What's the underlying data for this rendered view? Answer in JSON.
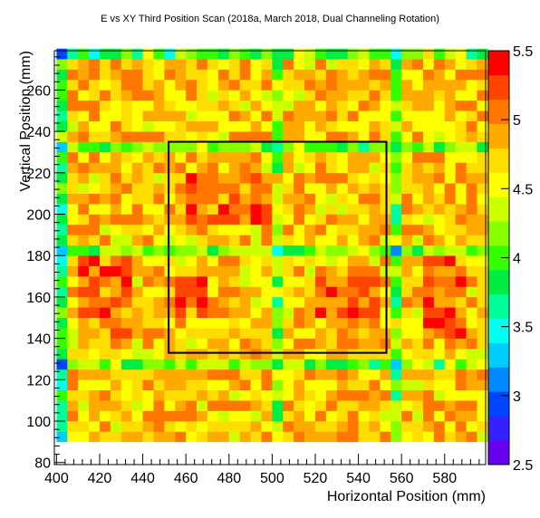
{
  "chart_data": {
    "type": "heatmap",
    "title": "E vs XY Third Position Scan (2018a, March 2018, Dual Channeling Rotation)",
    "xlabel": "Horizontal Position (mm)",
    "ylabel": "Vertical Position (mm)",
    "xlim": [
      399,
      599
    ],
    "ylim": [
      79,
      279
    ],
    "x_ticks": [
      400,
      420,
      440,
      460,
      480,
      500,
      520,
      540,
      560,
      580
    ],
    "y_ticks": [
      80,
      100,
      120,
      140,
      160,
      180,
      200,
      220,
      240,
      260
    ],
    "colorbar": {
      "range": [
        2.5,
        5.5
      ],
      "ticks": [
        2.5,
        3,
        3.5,
        4,
        4.5,
        5,
        5.5
      ],
      "palette": [
        "#6600ee",
        "#3322ff",
        "#0044ff",
        "#0088ff",
        "#00ccff",
        "#00ffee",
        "#00ff99",
        "#00ee44",
        "#33ff00",
        "#88ff00",
        "#ccff00",
        "#ffff00",
        "#ffdd00",
        "#ffaa00",
        "#ff7700",
        "#ff4400",
        "#ff0000"
      ]
    },
    "grid": false,
    "bin_size_mm": 5,
    "x_bins": [
      400,
      405,
      410,
      415,
      420,
      425,
      430,
      435,
      440,
      445,
      450,
      455,
      460,
      465,
      470,
      475,
      480,
      485,
      490,
      495,
      500,
      505,
      510,
      515,
      520,
      525,
      530,
      535,
      540,
      545,
      550,
      555,
      560,
      565,
      570,
      575,
      580,
      585,
      590,
      595
    ],
    "y_bins": [
      90,
      95,
      100,
      105,
      110,
      115,
      120,
      125,
      130,
      135,
      140,
      145,
      150,
      155,
      160,
      165,
      170,
      175,
      180,
      185,
      190,
      195,
      200,
      205,
      210,
      215,
      220,
      225,
      230,
      235,
      240,
      245,
      250,
      255,
      260,
      265,
      270,
      275
    ],
    "model": {
      "base": 4.75,
      "low_x_columns": [
        400,
        500,
        555
      ],
      "low_y_rows": [
        125,
        180,
        230
      ],
      "hot_regions": [
        [
          410,
          430,
          140,
          175
        ],
        [
          460,
          500,
          195,
          215
        ],
        [
          570,
          585,
          140,
          175
        ],
        [
          455,
          465,
          150,
          165
        ],
        [
          520,
          545,
          150,
          165
        ]
      ]
    },
    "annotation": {
      "shape": "rectangle",
      "x": [
        452,
        553
      ],
      "y": [
        133,
        235
      ]
    }
  }
}
